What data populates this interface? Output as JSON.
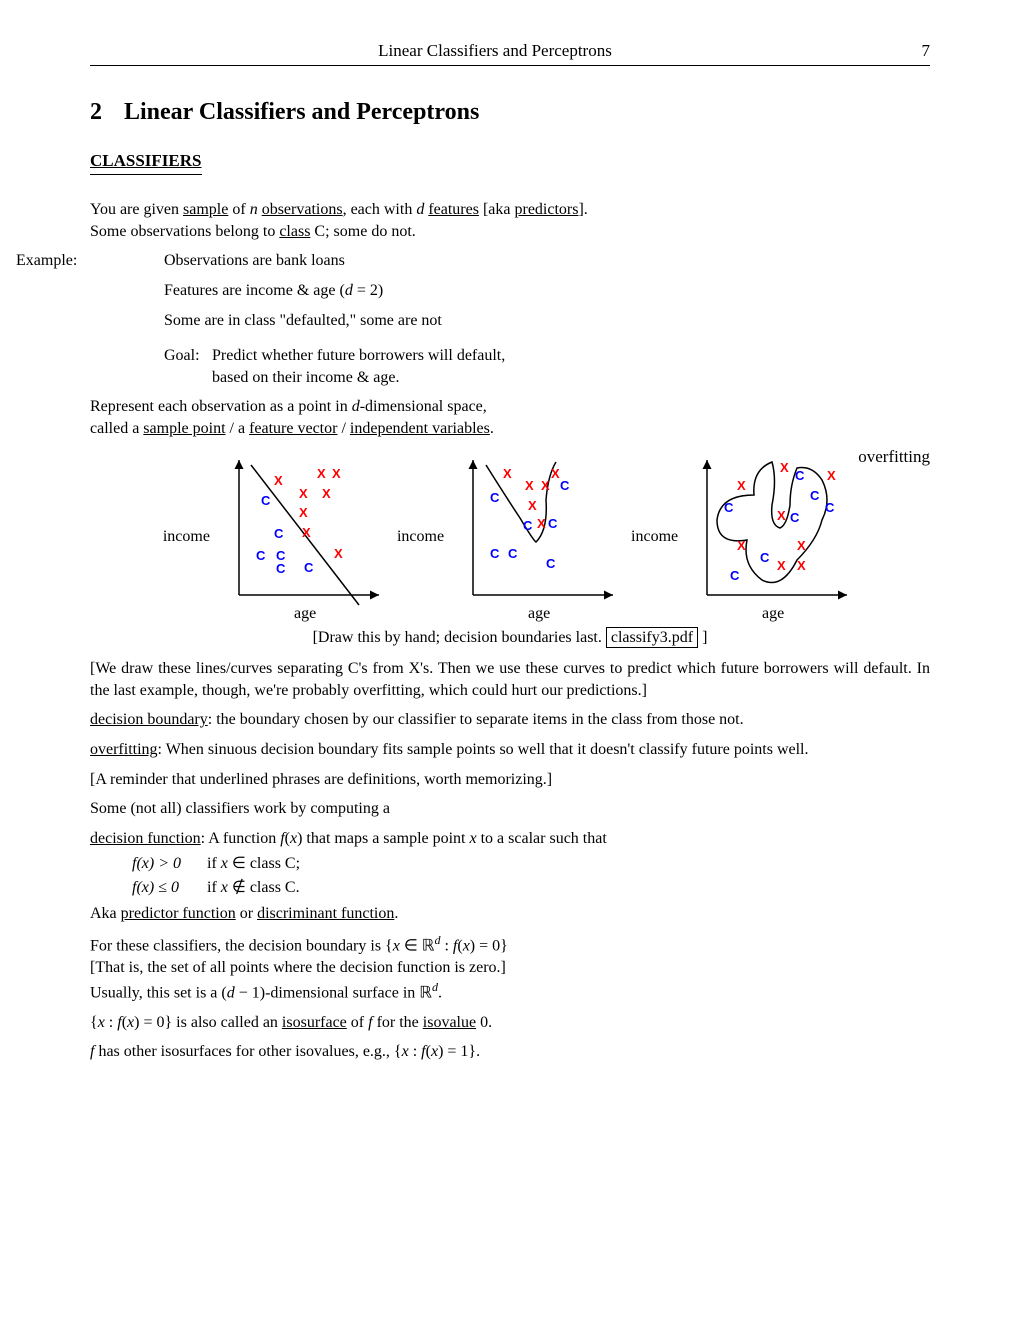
{
  "header": {
    "title": "Linear Classifiers and Perceptrons",
    "page": "7"
  },
  "section": {
    "number": "2",
    "title": "Linear Classifiers and Perceptrons"
  },
  "subsection": "CLASSIFIERS",
  "p_intro_1": "You are given ",
  "p_intro_sample": "sample",
  "p_intro_2": " of ",
  "p_intro_n": "n",
  "p_intro_3": " ",
  "p_intro_observ": "observations",
  "p_intro_4": ", each with ",
  "p_intro_d": "d",
  "p_intro_5": " ",
  "p_intro_features": "features",
  "p_intro_6": " [aka ",
  "p_intro_pred": "predictors",
  "p_intro_7": "].",
  "p_intro_line2a": "Some observations belong to ",
  "p_intro_class": "class",
  "p_intro_line2b": " C; some do not.",
  "example": {
    "label": "Example:",
    "l1": "Observations are bank loans",
    "l2a": "Features are income & age (",
    "l2b": "d",
    "l2c": " = 2)",
    "l3": "Some are in class \"defaulted,\" some are not",
    "goal_label": "Goal:",
    "goal1": "Predict whether future borrowers will default,",
    "goal2": "based on their income & age."
  },
  "represent": {
    "l1a": "Represent each observation as a point in ",
    "l1b": "d",
    "l1c": "-dimensional space,",
    "l2a": "called a ",
    "l2_sp": "sample point",
    "l2b": " / a ",
    "l2_fv": "feature vector",
    "l2c": " / ",
    "l2_iv": "independent variables",
    "l2d": "."
  },
  "figure": {
    "overfit": "overfitting",
    "ylabel": "income",
    "xlabel": "age",
    "caption_a": "[Draw this by hand; decision boundaries last. ",
    "caption_box": "classify3.pdf",
    "caption_b": " ]",
    "panel1": {
      "X": [
        [
          60,
          35
        ],
        [
          103,
          28
        ],
        [
          118,
          28
        ],
        [
          85,
          48
        ],
        [
          108,
          48
        ],
        [
          85,
          67
        ],
        [
          88,
          87
        ],
        [
          120,
          108
        ]
      ],
      "C": [
        [
          47,
          55
        ],
        [
          60,
          88
        ],
        [
          42,
          110
        ],
        [
          62,
          123
        ],
        [
          62,
          110
        ],
        [
          90,
          122
        ]
      ],
      "boundary": "line"
    },
    "panel2": {
      "X": [
        [
          55,
          28
        ],
        [
          103,
          28
        ],
        [
          77,
          40
        ],
        [
          93,
          40
        ],
        [
          80,
          60
        ],
        [
          89,
          78
        ]
      ],
      "C": [
        [
          42,
          52
        ],
        [
          112,
          40
        ],
        [
          75,
          80
        ],
        [
          100,
          78
        ],
        [
          42,
          108
        ],
        [
          60,
          108
        ],
        [
          98,
          118
        ]
      ],
      "boundary": "curve"
    },
    "panel3": {
      "X": [
        [
          98,
          22
        ],
        [
          145,
          30
        ],
        [
          55,
          40
        ],
        [
          95,
          70
        ],
        [
          115,
          100
        ],
        [
          55,
          100
        ],
        [
          95,
          120
        ],
        [
          115,
          120
        ]
      ],
      "C": [
        [
          113,
          30
        ],
        [
          128,
          50
        ],
        [
          42,
          62
        ],
        [
          143,
          62
        ],
        [
          108,
          72
        ],
        [
          78,
          112
        ],
        [
          48,
          130
        ]
      ],
      "boundary": "blob"
    }
  },
  "p_draw": "[We draw these lines/curves separating C's from X's. Then we use these curves to predict which future borrowers will default. In the last example, though, we're probably overfitting, which could hurt our predictions.]",
  "def_db_term": "decision boundary",
  "def_db_body": ": the boundary chosen by our classifier to separate items in the class from those not.",
  "def_of_term": "overfitting",
  "def_of_body": ": When sinuous decision boundary fits sample points so well that it doesn't classify future points well.",
  "p_reminder": "[A reminder that underlined phrases are definitions, worth memorizing.]",
  "p_compute": "Some (not all) classifiers work by computing a",
  "def_df_term": "decision function",
  "def_df_a": ": A function ",
  "def_df_fx": "f",
  "def_df_b": "(",
  "def_df_x": "x",
  "def_df_c": ") that maps a sample point ",
  "def_df_x2": "x",
  "def_df_d": " to a scalar such that",
  "fn_gt_lhs": "f(x) > 0",
  "fn_gt_rhs_a": "if ",
  "fn_gt_rhs_x": "x",
  "fn_gt_rhs_b": " ∈ class C;",
  "fn_le_lhs": "f(x) ≤ 0",
  "fn_le_rhs_a": "if ",
  "fn_le_rhs_x": "x",
  "fn_le_rhs_b": " ∉ class C.",
  "aka_a": "Aka ",
  "aka_pf": "predictor function",
  "aka_b": " or ",
  "aka_df": "discriminant function",
  "aka_c": ".",
  "p_set_a": "For these classifiers, the decision boundary is {",
  "p_set_x": "x",
  "p_set_b": " ∈ ℝ",
  "p_set_d": "d",
  "p_set_c": " : ",
  "p_set_fx": "f",
  "p_set_e": "(",
  "p_set_x2": "x",
  "p_set_f": ") = 0}",
  "p_set_line2": "[That is, the set of all points where the decision function is zero.]",
  "p_set_line3a": "Usually, this set is a (",
  "p_set_line3b": "d",
  "p_set_line3c": " − 1)-dimensional surface in ℝ",
  "p_set_line3d": "d",
  "p_set_line3e": ".",
  "p_iso_a": "{",
  "p_iso_x": "x",
  "p_iso_b": " : ",
  "p_iso_f": "f",
  "p_iso_c": "(",
  "p_iso_x2": "x",
  "p_iso_d": ") = 0} is also called an ",
  "p_iso_surf": "isosurface",
  "p_iso_e": " of ",
  "p_iso_f2": "f",
  "p_iso_g": " for the ",
  "p_iso_val": "isovalue",
  "p_iso_h": " 0.",
  "p_other_a": "f",
  "p_other_b": " has other isosurfaces for other isovalues, e.g., {",
  "p_other_x": "x",
  "p_other_c": " : ",
  "p_other_f": "f",
  "p_other_d": "(",
  "p_other_x2": "x",
  "p_other_e": ") = 1}."
}
